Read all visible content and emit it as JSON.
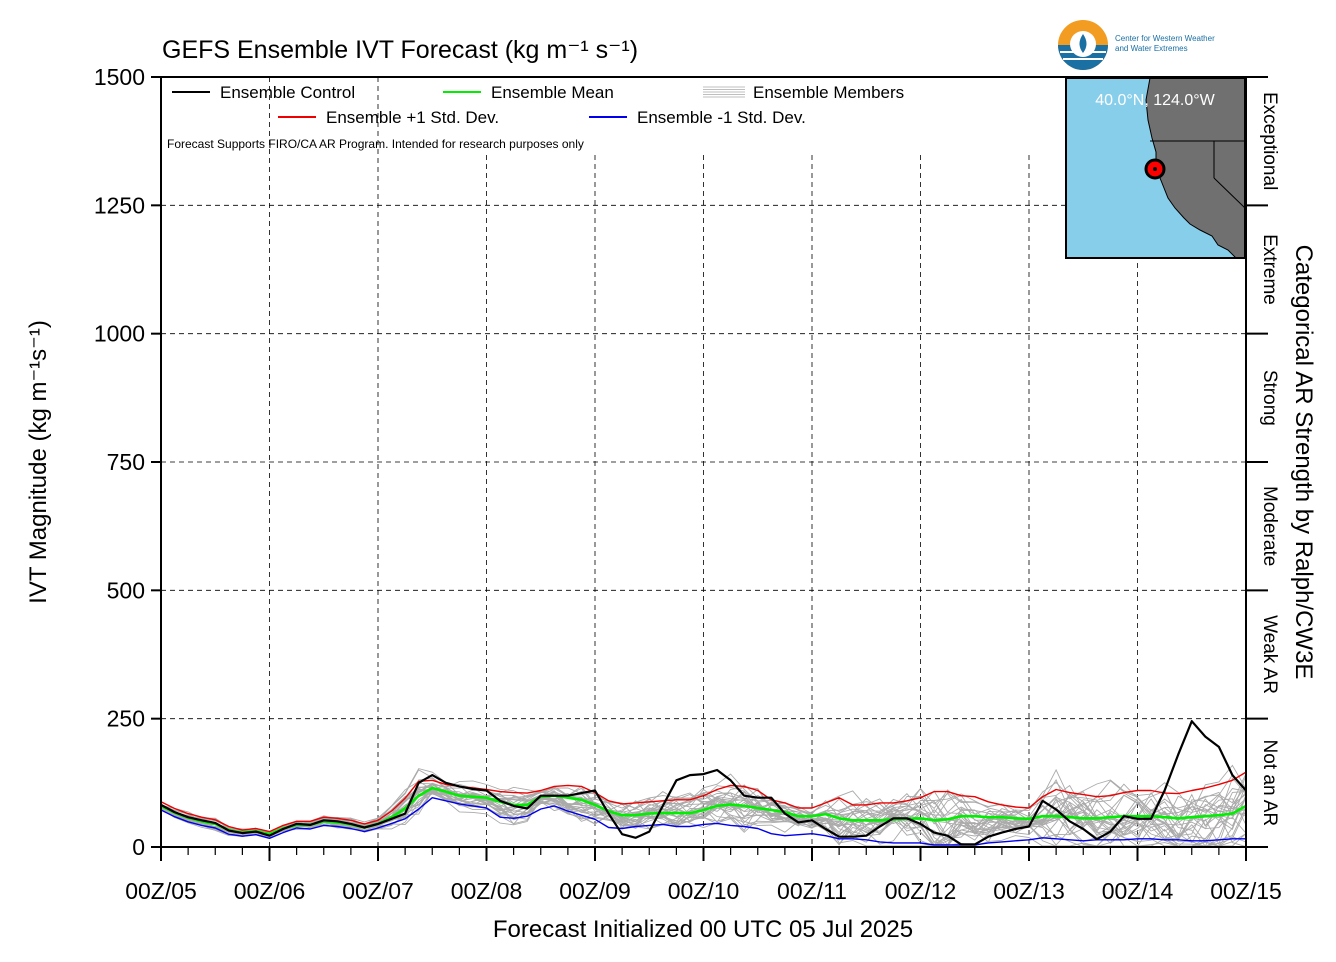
{
  "chart_data": {
    "type": "line",
    "title": "GEFS Ensemble IVT Forecast (kg m⁻¹ s⁻¹)",
    "xlabel": "Forecast Initialized 00 UTC 05 Jul 2025",
    "ylabel": "IVT Magnitude (kg m⁻¹s⁻¹)",
    "right_label": "Categorical AR Strength by Ralph/CW3E",
    "note": "Forecast Supports FIRO/CA AR Program. Intended for research purposes only",
    "ylim": [
      0,
      1500
    ],
    "xlim": [
      0,
      240
    ],
    "yticks": [
      0,
      250,
      500,
      750,
      1000,
      1250,
      1500
    ],
    "ytick_labels": [
      "0",
      "250",
      "500",
      "750",
      "1000",
      "1250",
      "1500"
    ],
    "xticks": [
      0,
      24,
      48,
      72,
      96,
      120,
      144,
      168,
      192,
      216,
      240
    ],
    "xtick_labels": [
      "00Z/05",
      "00Z/06",
      "00Z/07",
      "00Z/08",
      "00Z/09",
      "00Z/10",
      "00Z/11",
      "00Z/12",
      "00Z/13",
      "00Z/14",
      "00Z/15"
    ],
    "grid": true,
    "legend_position": "top-left",
    "categories_right": [
      {
        "label": "Not an AR",
        "range": [
          0,
          250
        ]
      },
      {
        "label": "Weak AR",
        "range": [
          250,
          500
        ]
      },
      {
        "label": "Moderate",
        "range": [
          500,
          750
        ]
      },
      {
        "label": "Strong",
        "range": [
          750,
          1000
        ]
      },
      {
        "label": "Extreme",
        "range": [
          1000,
          1250
        ]
      },
      {
        "label": "Exceptional",
        "range": [
          1250,
          1500
        ]
      }
    ],
    "x": [
      0,
      3,
      6,
      9,
      12,
      15,
      18,
      21,
      24,
      27,
      30,
      33,
      36,
      39,
      42,
      45,
      48,
      51,
      54,
      57,
      60,
      63,
      66,
      69,
      72,
      75,
      78,
      81,
      84,
      87,
      90,
      93,
      96,
      99,
      102,
      105,
      108,
      111,
      114,
      117,
      120,
      123,
      126,
      129,
      132,
      135,
      138,
      141,
      144,
      147,
      150,
      153,
      156,
      159,
      162,
      165,
      168,
      171,
      174,
      177,
      180,
      183,
      186,
      189,
      192,
      195,
      198,
      201,
      204,
      207,
      210,
      213,
      216,
      219,
      222,
      225,
      228,
      231,
      234,
      237,
      240
    ],
    "series": [
      {
        "name": "Ensemble Control",
        "color": "#000000",
        "values": [
          82,
          68,
          58,
          52,
          47,
          32,
          27,
          30,
          22,
          35,
          45,
          43,
          52,
          50,
          45,
          38,
          45,
          55,
          65,
          125,
          140,
          125,
          118,
          113,
          110,
          90,
          80,
          75,
          100,
          100,
          100,
          105,
          110,
          65,
          25,
          18,
          30,
          80,
          130,
          140,
          142,
          150,
          130,
          100,
          96,
          96,
          65,
          48,
          52,
          35,
          20,
          20,
          22,
          40,
          56,
          56,
          45,
          28,
          22,
          5,
          5,
          20,
          28,
          35,
          40,
          90,
          73,
          50,
          35,
          15,
          30,
          60,
          55,
          55,
          110,
          180,
          245,
          215,
          195,
          140,
          110
        ]
      },
      {
        "name": "Ensemble Mean",
        "color": "#00ee00",
        "values": [
          80,
          67,
          57,
          50,
          45,
          33,
          28,
          31,
          25,
          36,
          43,
          43,
          50,
          48,
          44,
          38,
          45,
          58,
          75,
          100,
          115,
          108,
          100,
          98,
          96,
          88,
          82,
          82,
          98,
          100,
          96,
          92,
          82,
          70,
          62,
          62,
          65,
          66,
          66,
          66,
          72,
          80,
          83,
          80,
          76,
          72,
          68,
          60,
          60,
          64,
          56,
          52,
          52,
          52,
          54,
          55,
          56,
          52,
          54,
          60,
          60,
          58,
          58,
          56,
          55,
          60,
          60,
          58,
          56,
          56,
          58,
          60,
          60,
          60,
          58,
          56,
          58,
          60,
          62,
          65,
          80
        ]
      },
      {
        "name": "Ensemble +1 Std. Dev.",
        "color": "#ee0000",
        "values": [
          88,
          75,
          65,
          58,
          53,
          40,
          33,
          36,
          30,
          42,
          50,
          50,
          58,
          56,
          52,
          45,
          52,
          70,
          95,
          128,
          130,
          122,
          118,
          115,
          112,
          108,
          106,
          105,
          110,
          118,
          120,
          118,
          106,
          90,
          84,
          86,
          88,
          90,
          92,
          92,
          100,
          112,
          120,
          118,
          110,
          92,
          86,
          76,
          76,
          86,
          96,
          82,
          82,
          86,
          86,
          90,
          96,
          108,
          108,
          100,
          98,
          88,
          82,
          78,
          76,
          98,
          112,
          106,
          102,
          98,
          100,
          106,
          110,
          110,
          105,
          104,
          110,
          115,
          122,
          130,
          146
        ]
      },
      {
        "name": "Ensemble -1 Std. Dev.",
        "color": "#0000ee",
        "values": [
          72,
          59,
          49,
          42,
          37,
          25,
          21,
          24,
          17,
          28,
          37,
          35,
          42,
          40,
          36,
          30,
          37,
          46,
          55,
          74,
          96,
          90,
          84,
          80,
          76,
          58,
          56,
          60,
          74,
          80,
          70,
          62,
          54,
          38,
          36,
          40,
          42,
          44,
          40,
          40,
          44,
          46,
          42,
          40,
          36,
          26,
          22,
          24,
          26,
          22,
          16,
          16,
          14,
          10,
          8,
          8,
          8,
          4,
          4,
          4,
          4,
          8,
          10,
          12,
          14,
          18,
          16,
          14,
          12,
          14,
          14,
          14,
          16,
          16,
          14,
          14,
          12,
          12,
          14,
          16,
          16
        ]
      }
    ],
    "members_label": "Ensemble Members",
    "inset_map": {
      "label": "40.0°N, 124.0°W",
      "lat": 40.0,
      "lon": -124.0,
      "ocean_color": "#87ceeb",
      "land_color": "#707070"
    },
    "logo_text": [
      "Center for Western Weather",
      "and Water Extremes"
    ]
  }
}
